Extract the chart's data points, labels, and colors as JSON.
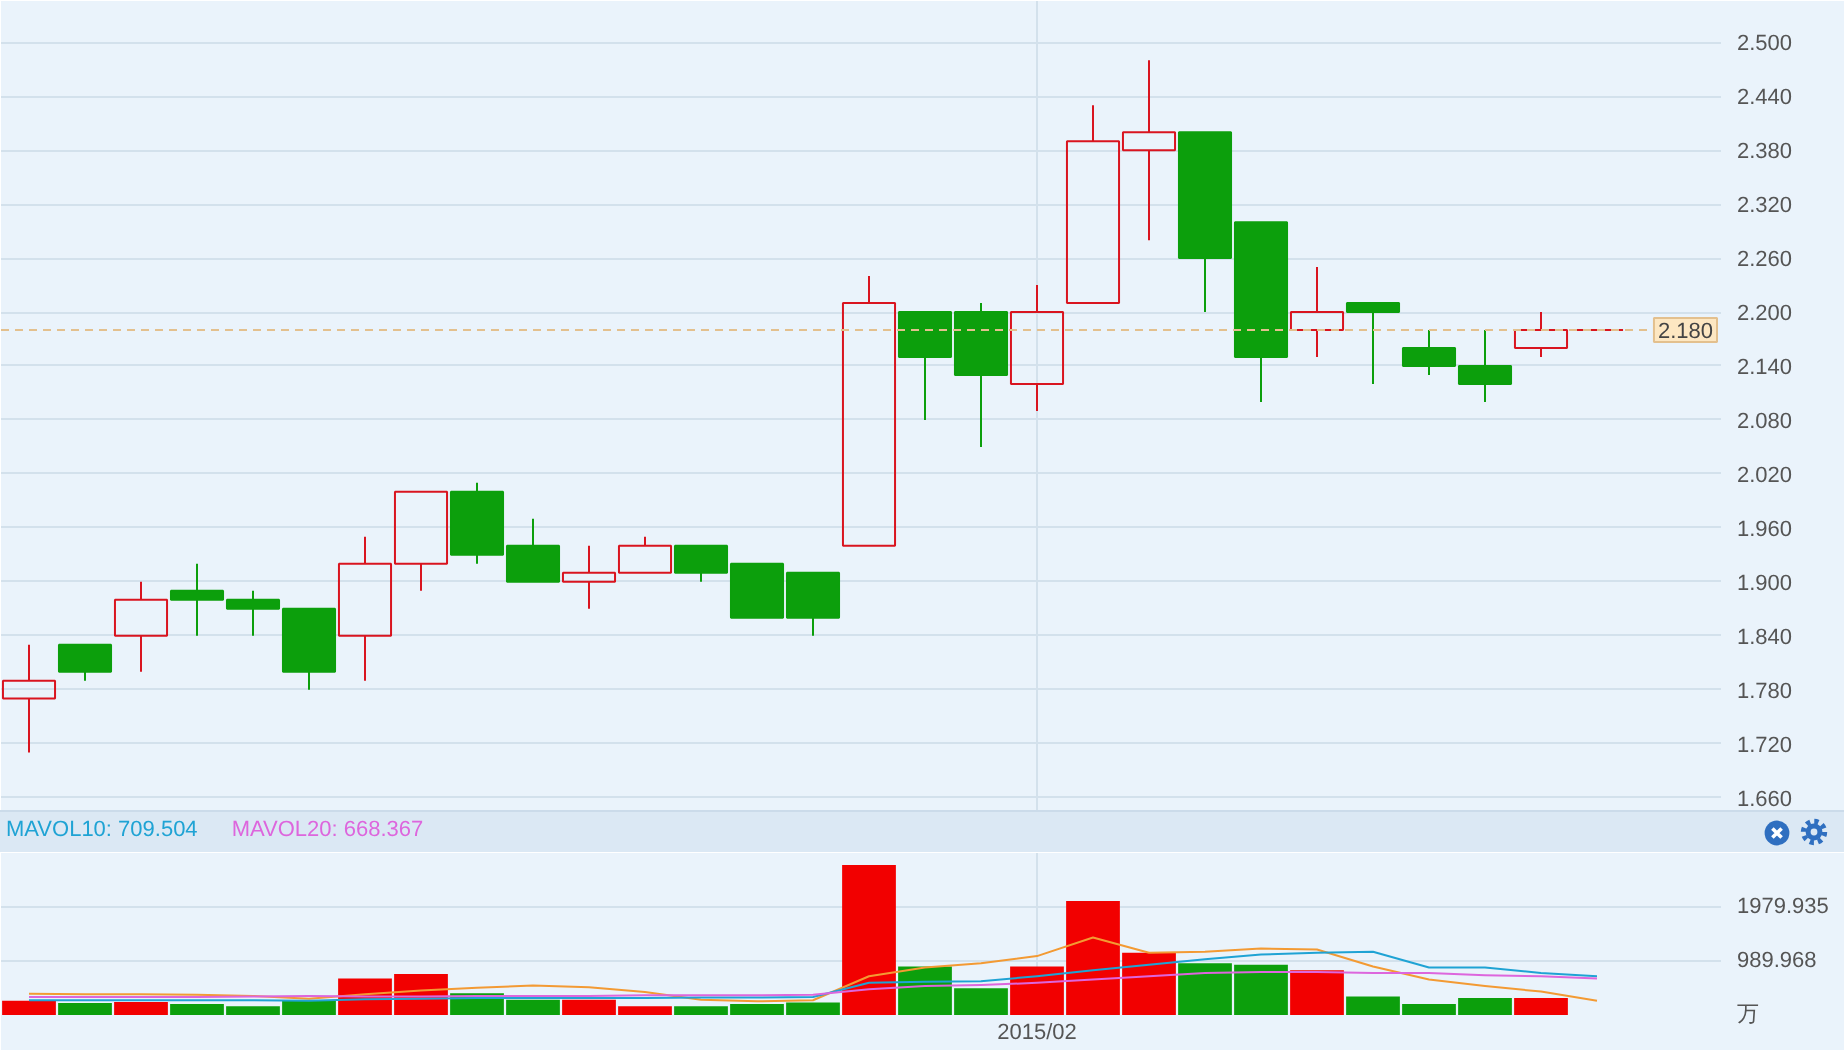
{
  "chart_data": [
    {
      "type": "candlestick",
      "categories": [
        null,
        null,
        null,
        null,
        null,
        null,
        null,
        null,
        null,
        null,
        null,
        null,
        null,
        null,
        null,
        null,
        null,
        null,
        null,
        null,
        null,
        null,
        null,
        null,
        null,
        null,
        null,
        null,
        null
      ],
      "ohlc": [
        [
          1.77,
          1.83,
          1.71,
          1.79
        ],
        [
          1.83,
          1.83,
          1.79,
          1.8
        ],
        [
          1.84,
          1.9,
          1.8,
          1.88
        ],
        [
          1.89,
          1.92,
          1.84,
          1.88
        ],
        [
          1.88,
          1.89,
          1.84,
          1.87
        ],
        [
          1.87,
          1.87,
          1.78,
          1.8
        ],
        [
          1.84,
          1.95,
          1.79,
          1.92
        ],
        [
          1.92,
          2.0,
          1.89,
          2.0
        ],
        [
          2.0,
          2.01,
          1.92,
          1.93
        ],
        [
          1.94,
          1.97,
          1.9,
          1.9
        ],
        [
          1.9,
          1.94,
          1.87,
          1.91
        ],
        [
          1.91,
          1.95,
          1.91,
          1.94
        ],
        [
          1.94,
          1.94,
          1.9,
          1.91
        ],
        [
          1.92,
          1.92,
          1.86,
          1.86
        ],
        [
          1.91,
          1.91,
          1.84,
          1.86
        ],
        [
          1.94,
          2.24,
          1.94,
          2.21
        ],
        [
          2.2,
          2.2,
          2.08,
          2.15
        ],
        [
          2.2,
          2.21,
          2.05,
          2.13
        ],
        [
          2.12,
          2.23,
          2.09,
          2.2
        ],
        [
          2.21,
          2.43,
          2.21,
          2.39
        ],
        [
          2.38,
          2.48,
          2.28,
          2.4
        ],
        [
          2.4,
          2.4,
          2.2,
          2.26
        ],
        [
          2.3,
          2.3,
          2.1,
          2.15
        ],
        [
          2.18,
          2.25,
          2.15,
          2.2
        ],
        [
          2.21,
          2.21,
          2.12,
          2.2
        ],
        [
          2.16,
          2.18,
          2.13,
          2.14
        ],
        [
          2.14,
          2.18,
          2.1,
          2.12
        ],
        [
          2.16,
          2.2,
          2.15,
          2.18
        ],
        [
          2.18,
          2.18,
          2.18,
          2.18
        ]
      ],
      "colors": [
        "#d9141f",
        "#0c9f0c",
        "#d9141f",
        "#0c9f0c",
        "#0c9f0c",
        "#0c9f0c",
        "#d9141f",
        "#d9141f",
        "#0c9f0c",
        "#0c9f0c",
        "#d9141f",
        "#d9141f",
        "#0c9f0c",
        "#0c9f0c",
        "#0c9f0c",
        "#d9141f",
        "#0c9f0c",
        "#0c9f0c",
        "#d9141f",
        "#d9141f",
        "#d9141f",
        "#0c9f0c",
        "#0c9f0c",
        "#d9141f",
        "#0c9f0c",
        "#0c9f0c",
        "#0c9f0c",
        "#d9141f",
        "#d9141f"
      ],
      "ylim": [
        1.645,
        2.546
      ],
      "yticks": [
        {
          "value": 2.5,
          "label": "2.500"
        },
        {
          "value": 2.44,
          "label": "2.440"
        },
        {
          "value": 2.38,
          "label": "2.380"
        },
        {
          "value": 2.32,
          "label": "2.320"
        },
        {
          "value": 2.26,
          "label": "2.260"
        },
        {
          "value": 2.2,
          "label": "2.200"
        },
        {
          "value": 2.14,
          "label": "2.140"
        },
        {
          "value": 2.08,
          "label": "2.080"
        },
        {
          "value": 2.02,
          "label": "2.020"
        },
        {
          "value": 1.96,
          "label": "1.960"
        },
        {
          "value": 1.9,
          "label": "1.900"
        },
        {
          "value": 1.84,
          "label": "1.840"
        },
        {
          "value": 1.78,
          "label": "1.780"
        },
        {
          "value": 1.72,
          "label": "1.720"
        },
        {
          "value": 1.66,
          "label": "1.660"
        }
      ],
      "ref_lines": [
        {
          "axis": "y",
          "value": 2.18,
          "label": "2.180",
          "color": "#e3c08e",
          "line_style": "dashed"
        }
      ],
      "grid": true,
      "tick_labels": "y"
    },
    {
      "type": "bar",
      "categories": [
        null,
        null,
        null,
        null,
        null,
        null,
        null,
        null,
        null,
        null,
        null,
        null,
        null,
        null,
        null,
        null,
        null,
        null,
        "2015/02",
        null,
        null,
        null,
        null,
        null,
        null,
        null,
        null,
        null,
        null
      ],
      "series": [
        {
          "values": [
            260,
            220,
            240,
            200,
            160,
            260,
            670,
            750,
            400,
            280,
            280,
            160,
            160,
            200,
            230,
            2750,
            890,
            490,
            890,
            2090,
            1140,
            950,
            920,
            820,
            340,
            200,
            310,
            310,
            null
          ],
          "colors": [
            "#f20000",
            "#0c9f0c",
            "#f20000",
            "#0c9f0c",
            "#0c9f0c",
            "#0c9f0c",
            "#f20000",
            "#f20000",
            "#0c9f0c",
            "#0c9f0c",
            "#f20000",
            "#f20000",
            "#0c9f0c",
            "#0c9f0c",
            "#0c9f0c",
            "#f20000",
            "#0c9f0c",
            "#0c9f0c",
            "#f20000",
            "#f20000",
            "#f20000",
            "#0c9f0c",
            "#0c9f0c",
            "#f20000",
            "#0c9f0c",
            "#0c9f0c",
            "#0c9f0c",
            "#f20000",
            "#f20000"
          ]
        },
        {
          "type": "line",
          "color": "#f39a33",
          "values": [
            390,
            380,
            380,
            370,
            350,
            300,
            380,
            450,
            500,
            540,
            510,
            420,
            280,
            250,
            270,
            710,
            870,
            950,
            1080,
            1420,
            1140,
            1160,
            1220,
            1200,
            890,
            650,
            530,
            430,
            260
          ]
        },
        {
          "type": "line",
          "name": "MAVOL10: 709.504",
          "color": "#1fa3d4",
          "values": [
            270,
            270,
            270,
            270,
            270,
            260,
            290,
            300,
            310,
            310,
            310,
            310,
            320,
            320,
            330,
            590,
            610,
            620,
            710,
            820,
            920,
            1020,
            1110,
            1140,
            1160,
            870,
            870,
            770,
            710
          ]
        },
        {
          "type": "line",
          "name": "MAVOL20: 668.367",
          "color": "#dd66dd",
          "values": [
            330,
            330,
            330,
            330,
            340,
            350,
            340,
            340,
            350,
            350,
            350,
            360,
            360,
            360,
            370,
            470,
            530,
            550,
            590,
            650,
            710,
            770,
            790,
            790,
            770,
            770,
            730,
            710,
            670
          ]
        }
      ],
      "ylim": [
        0,
        2970
      ],
      "yticks": [
        {
          "value": 0,
          "label": "万"
        },
        989.968,
        1979.935
      ],
      "grid": true,
      "legend": "top left"
    }
  ]
}
